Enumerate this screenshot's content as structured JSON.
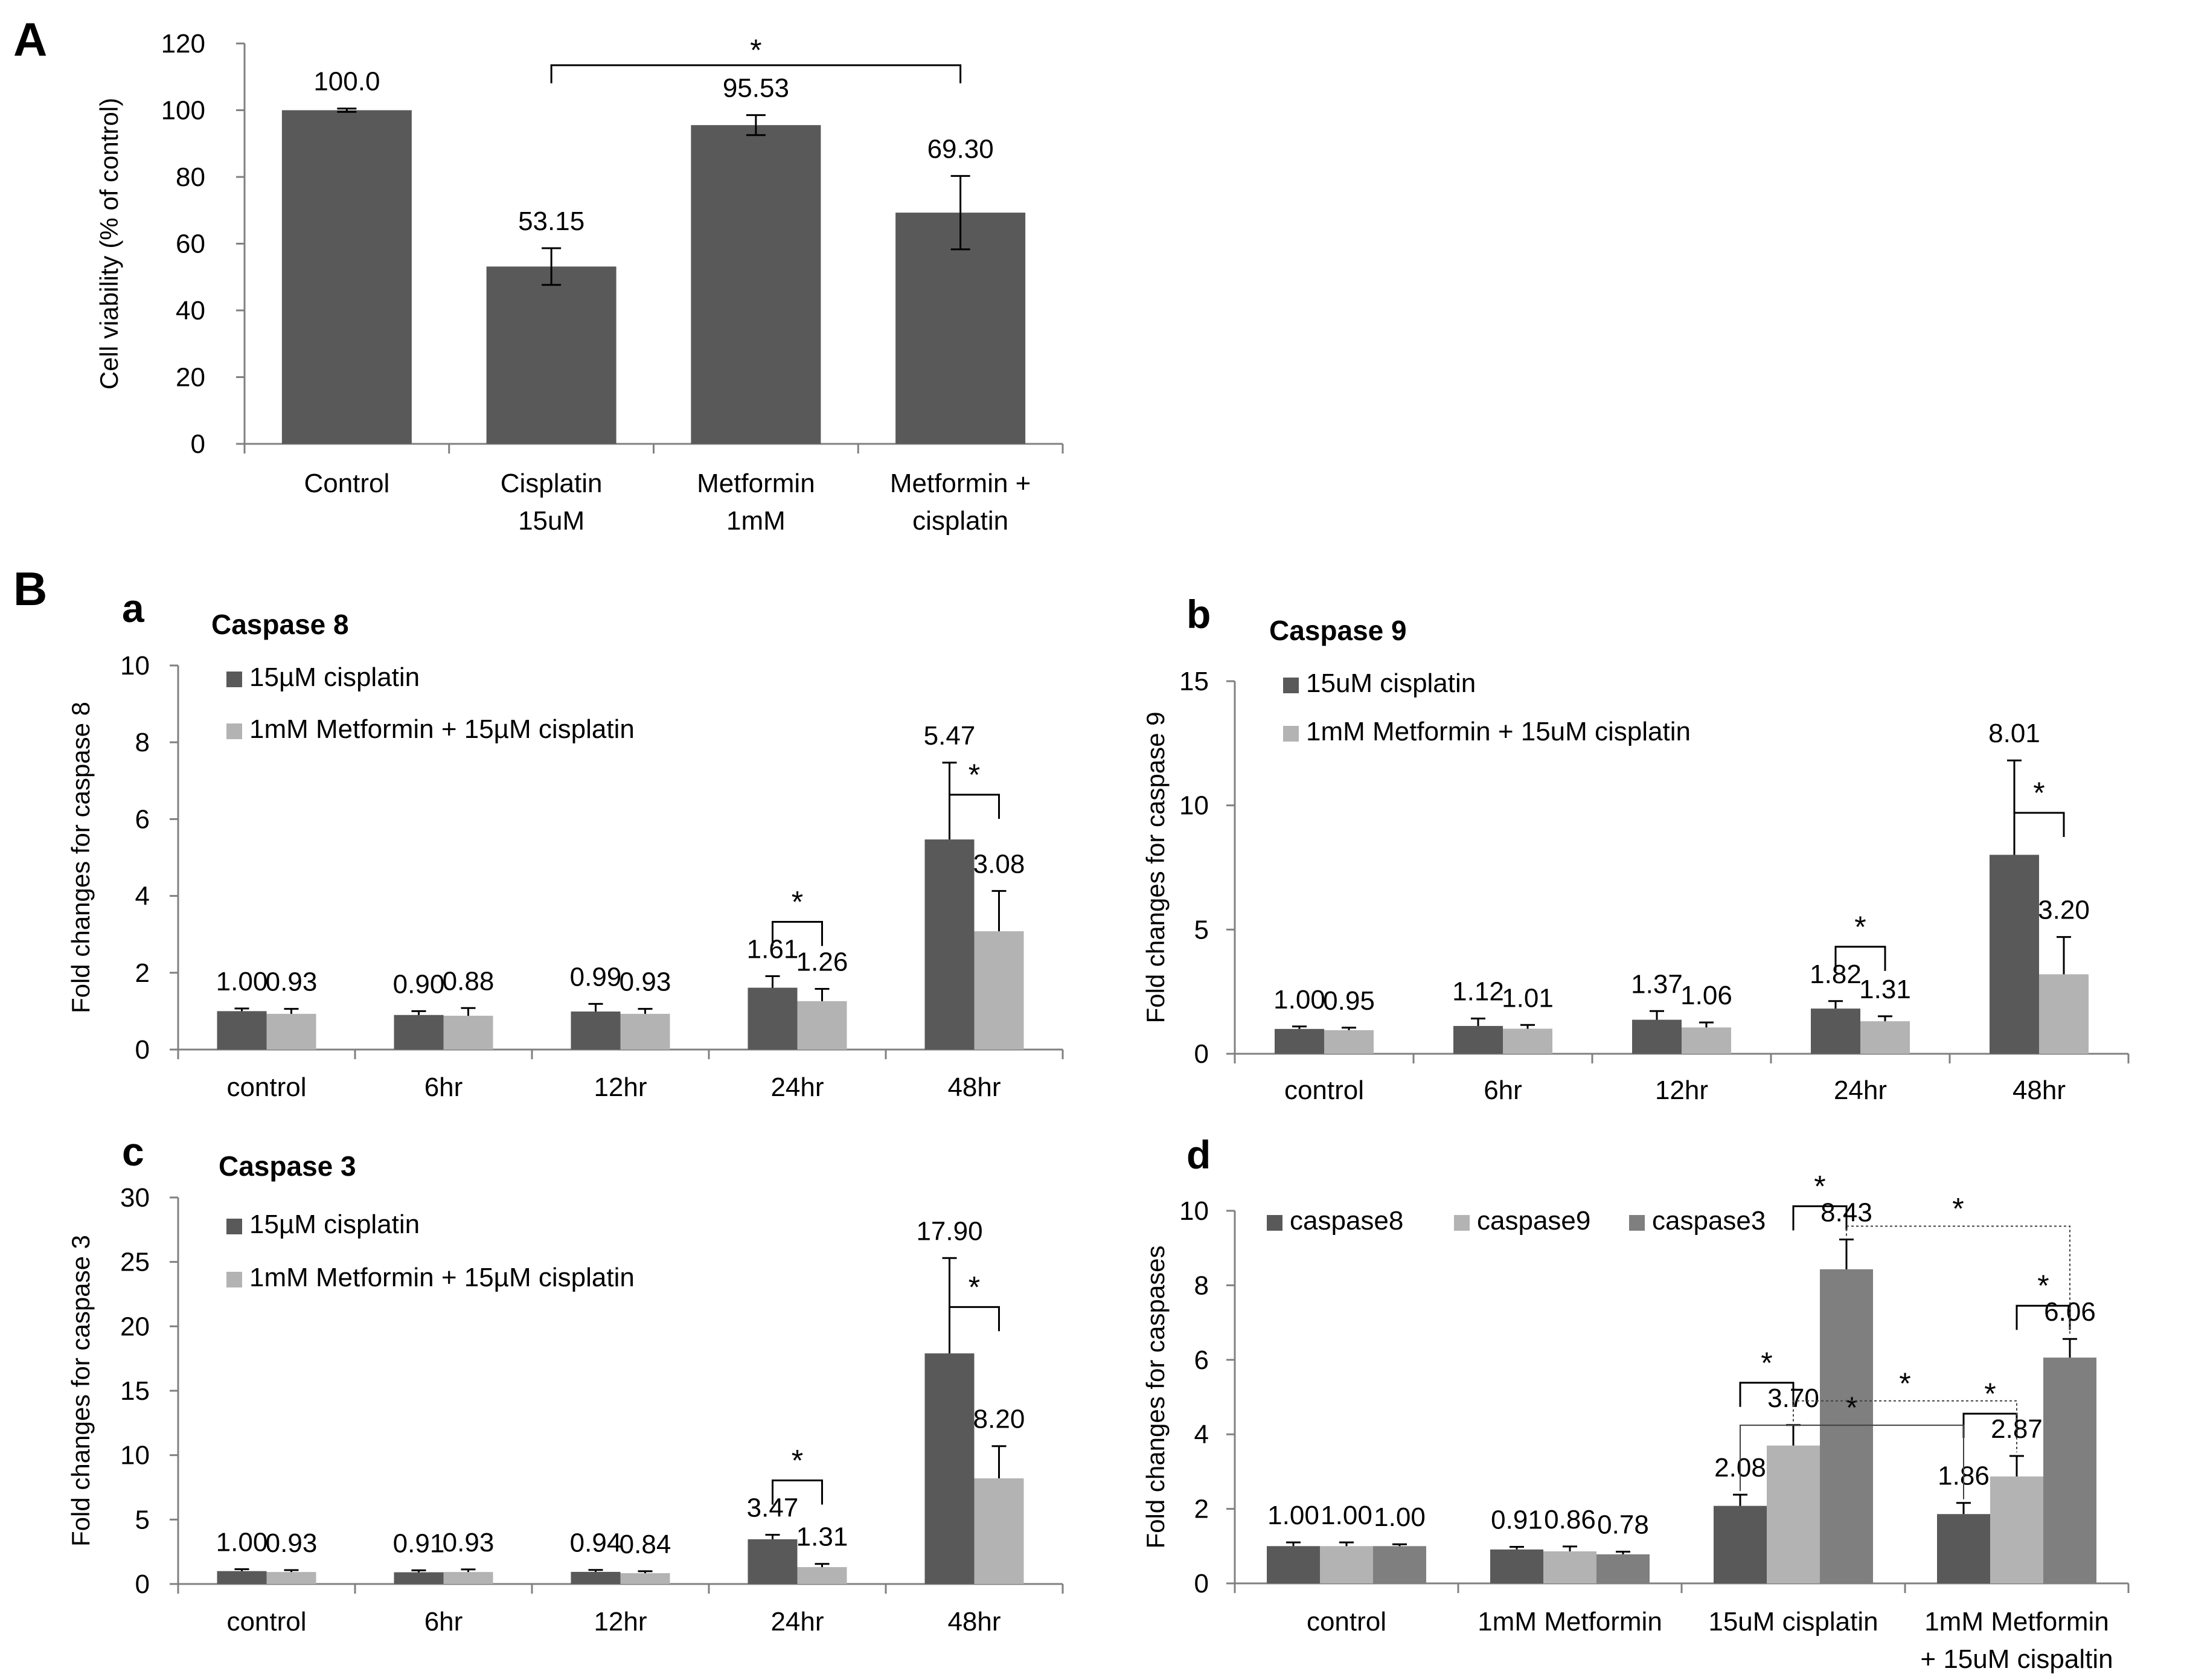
{
  "figure": {
    "label_A": "A",
    "label_B": "B",
    "colors": {
      "dark": "#595959",
      "light": "#b3b3b3",
      "mid": "#7f7f7f",
      "axis": "#808080",
      "ink": "#000000"
    }
  },
  "chart_data": [
    {
      "id": "A",
      "panel_label": "A",
      "type": "bar",
      "title": "",
      "ylabel": "Cell viability (% of control)",
      "ylim": [
        0,
        120
      ],
      "yticks": [
        0,
        20,
        40,
        60,
        80,
        100,
        120
      ],
      "categories": [
        [
          "Control"
        ],
        [
          "Cisplatin",
          "15uM"
        ],
        [
          "Metformin",
          "1mM"
        ],
        [
          "Metformin +",
          "cisplatin"
        ]
      ],
      "series": [
        {
          "name": "Cell viability",
          "color": "#595959",
          "values": [
            100.0,
            53.15,
            95.53,
            69.3
          ],
          "errors": [
            0.5,
            5.5,
            3.0,
            11.0
          ],
          "labels": [
            "100.0",
            "53.15",
            "95.53",
            "69.30"
          ]
        }
      ],
      "significance": [
        {
          "label": "*",
          "from_category": 1,
          "to_category": 3,
          "style": "solid"
        }
      ]
    },
    {
      "id": "Ba",
      "panel_label": "a",
      "type": "bar",
      "title": "Caspase 8",
      "ylabel": "Fold changes for caspase 8",
      "ylim": [
        0,
        10
      ],
      "yticks": [
        0,
        2,
        4,
        6,
        8,
        10
      ],
      "categories": [
        [
          "control"
        ],
        [
          "6hr"
        ],
        [
          "12hr"
        ],
        [
          "24hr"
        ],
        [
          "48hr"
        ]
      ],
      "series": [
        {
          "name": "15µM cisplatin",
          "color": "#595959",
          "values": [
            1.0,
            0.9,
            0.99,
            1.61,
            5.47
          ],
          "errors": [
            0.07,
            0.1,
            0.2,
            0.3,
            2.0
          ],
          "labels": [
            "1.00",
            "0.90",
            "0.99",
            "1.61",
            "5.47"
          ]
        },
        {
          "name": "1mM Metformin + 15µM cisplatin",
          "color": "#b3b3b3",
          "values": [
            0.93,
            0.88,
            0.93,
            1.26,
            3.08
          ],
          "errors": [
            0.13,
            0.2,
            0.13,
            0.32,
            1.05
          ],
          "labels": [
            "0.93",
            "0.88",
            "0.93",
            "1.26",
            "3.08"
          ]
        }
      ],
      "significance": [
        {
          "label": "*",
          "category": 3,
          "from_series": 0,
          "to_series": 1
        },
        {
          "label": "*",
          "category": 4,
          "from_series": 0,
          "to_series": 1
        }
      ]
    },
    {
      "id": "Bb",
      "panel_label": "b",
      "type": "bar",
      "title": "Caspase 9",
      "ylabel": "Fold changes for caspase 9",
      "ylim": [
        0,
        15
      ],
      "yticks": [
        0,
        5,
        10,
        15
      ],
      "categories": [
        [
          "control"
        ],
        [
          "6hr"
        ],
        [
          "12hr"
        ],
        [
          "24hr"
        ],
        [
          "48hr"
        ]
      ],
      "series": [
        {
          "name": "15uM cisplatin",
          "color": "#595959",
          "values": [
            1.0,
            1.12,
            1.37,
            1.82,
            8.01
          ],
          "errors": [
            0.1,
            0.3,
            0.35,
            0.3,
            3.8
          ],
          "labels": [
            "1.00",
            "1.12",
            "1.37",
            "1.82",
            "8.01"
          ]
        },
        {
          "name": "1mM Metformin + 15uM cisplatin",
          "color": "#b3b3b3",
          "values": [
            0.95,
            1.01,
            1.06,
            1.31,
            3.2
          ],
          "errors": [
            0.1,
            0.15,
            0.2,
            0.2,
            1.5
          ],
          "labels": [
            "0.95",
            "1.01",
            "1.06",
            "1.31",
            "3.20"
          ]
        }
      ],
      "significance": [
        {
          "label": "*",
          "category": 3,
          "from_series": 0,
          "to_series": 1
        },
        {
          "label": "*",
          "category": 4,
          "from_series": 0,
          "to_series": 1
        }
      ]
    },
    {
      "id": "Bc",
      "panel_label": "c",
      "type": "bar",
      "title": "Caspase 3",
      "ylabel": "Fold changes for caspase 3",
      "ylim": [
        0,
        30
      ],
      "yticks": [
        0,
        5,
        10,
        15,
        20,
        25,
        30
      ],
      "categories": [
        [
          "control"
        ],
        [
          "6hr"
        ],
        [
          "12hr"
        ],
        [
          "24hr"
        ],
        [
          "48hr"
        ]
      ],
      "series": [
        {
          "name": "15µM cisplatin",
          "color": "#595959",
          "values": [
            1.0,
            0.91,
            0.94,
            3.47,
            17.9
          ],
          "errors": [
            0.15,
            0.15,
            0.15,
            0.35,
            7.4
          ],
          "labels": [
            "1.00",
            "0.91",
            "0.94",
            "3.47",
            "17.90"
          ]
        },
        {
          "name": "1mM Metformin + 15µM cisplatin",
          "color": "#b3b3b3",
          "values": [
            0.93,
            0.93,
            0.84,
            1.31,
            8.2
          ],
          "errors": [
            0.15,
            0.2,
            0.15,
            0.25,
            2.5
          ],
          "labels": [
            "0.93",
            "0.93",
            "0.84",
            "1.31",
            "8.20"
          ]
        }
      ],
      "significance": [
        {
          "label": "*",
          "category": 3,
          "from_series": 0,
          "to_series": 1
        },
        {
          "label": "*",
          "category": 4,
          "from_series": 0,
          "to_series": 1
        }
      ]
    },
    {
      "id": "Bd",
      "panel_label": "d",
      "type": "bar",
      "title": "",
      "ylabel": "Fold changes for caspases",
      "ylim": [
        0,
        10
      ],
      "yticks": [
        0,
        2,
        4,
        6,
        8,
        10
      ],
      "categories": [
        [
          "control"
        ],
        [
          "1mM Metformin"
        ],
        [
          "15uM cisplatin"
        ],
        [
          "1mM Metformin",
          "+ 15uM cispaltin"
        ]
      ],
      "series": [
        {
          "name": "caspase8",
          "color": "#595959",
          "values": [
            1.0,
            0.91,
            2.08,
            1.86
          ],
          "errors": [
            0.1,
            0.07,
            0.3,
            0.3
          ],
          "labels": [
            "1.00",
            "0.91",
            "2.08",
            "1.86"
          ]
        },
        {
          "name": "caspase9",
          "color": "#b3b3b3",
          "values": [
            1.0,
            0.86,
            3.7,
            2.87
          ],
          "errors": [
            0.1,
            0.13,
            0.55,
            0.55
          ],
          "labels": [
            "1.00",
            "0.86",
            "3.70",
            "2.87"
          ]
        },
        {
          "name": "caspase3",
          "color": "#7f7f7f",
          "values": [
            1.0,
            0.78,
            8.43,
            6.06
          ],
          "errors": [
            0.05,
            0.07,
            0.8,
            0.5
          ],
          "labels": [
            "1.00",
            "0.78",
            "8.43",
            "6.06"
          ]
        }
      ],
      "significance": [
        {
          "label": "*",
          "type": "within",
          "category": 2,
          "from_series": 0,
          "to_series": 1
        },
        {
          "label": "*",
          "type": "within",
          "category": 2,
          "from_series": 1,
          "to_series": 2
        },
        {
          "label": "*",
          "type": "within",
          "category": 3,
          "from_series": 0,
          "to_series": 1
        },
        {
          "label": "*",
          "type": "within",
          "category": 3,
          "from_series": 1,
          "to_series": 2
        },
        {
          "label": "*",
          "type": "between",
          "series": 0,
          "from_category": 2,
          "to_category": 3
        },
        {
          "label": "*",
          "type": "between",
          "series": 1,
          "from_category": 2,
          "to_category": 3
        },
        {
          "label": "*",
          "type": "between",
          "series": 2,
          "from_category": 2,
          "to_category": 3
        }
      ]
    }
  ]
}
